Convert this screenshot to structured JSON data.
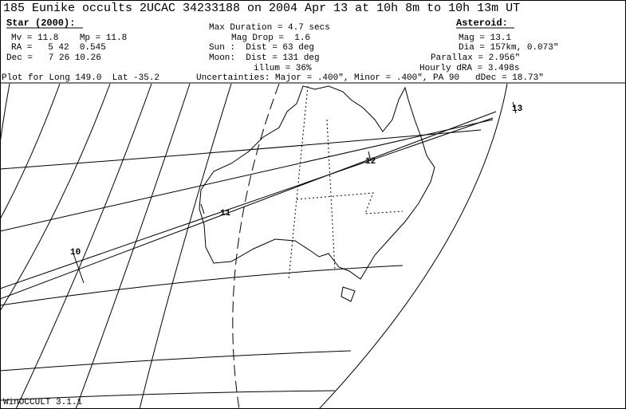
{
  "title": "185 Eunike occults 2UCAC 34233188 on 2004 Apr 13 at 10h 8m to 10h 13m UT",
  "star": {
    "header": "Star (2000):",
    "lines": [
      "Mv = 11.8    Mp = 11.8",
      "RA =   5 42  0.545",
      "Dec =   7 26 10.26"
    ]
  },
  "event": {
    "lines": [
      "Max Duration = 4.7 secs",
      "Mag Drop =  1.6",
      "Sun :  Dist = 63 deg",
      "Moon:  Dist = 131 deg",
      "illum = 36%"
    ]
  },
  "asteroid": {
    "header": "Asteroid:",
    "lines": [
      "Mag = 13.1",
      "Dia = 157km, 0.073\"",
      "Parallax = 2.956\"",
      "Hourly dRA = 3.498s",
      "dDec = 18.73\""
    ]
  },
  "plot_location": "Plot for Long 149.0  Lat -35.2",
  "uncertainties": "Uncertainties: Major = .400\", Minor = .400\", PA 90",
  "time_labels": [
    "10",
    "11",
    "12",
    "13"
  ],
  "footer": "WinOCCULT 3.1.1"
}
